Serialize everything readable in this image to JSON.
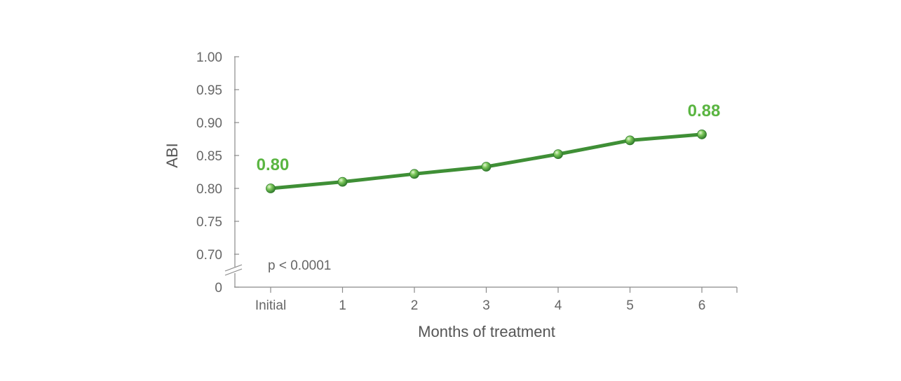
{
  "chart_data": {
    "type": "line",
    "xlabel": "Months of treatment",
    "ylabel": "ABI",
    "categories": [
      "Initial",
      "1",
      "2",
      "3",
      "4",
      "5",
      "6"
    ],
    "y_ticks": [
      "0",
      "0.70",
      "0.75",
      "0.80",
      "0.85",
      "0.90",
      "0.95",
      "1.00"
    ],
    "ylim": [
      0.7,
      1.0
    ],
    "axis_break": true,
    "series": [
      {
        "values": [
          0.8,
          0.81,
          0.822,
          0.833,
          0.852,
          0.873,
          0.882
        ]
      }
    ],
    "annotations": [
      {
        "text": "0.80",
        "index": 0
      },
      {
        "text": "0.88",
        "index": 6
      }
    ],
    "note": "p < 0.0001",
    "line_color": "#3f8f36",
    "label_color": "#5ab541",
    "grid": false
  }
}
